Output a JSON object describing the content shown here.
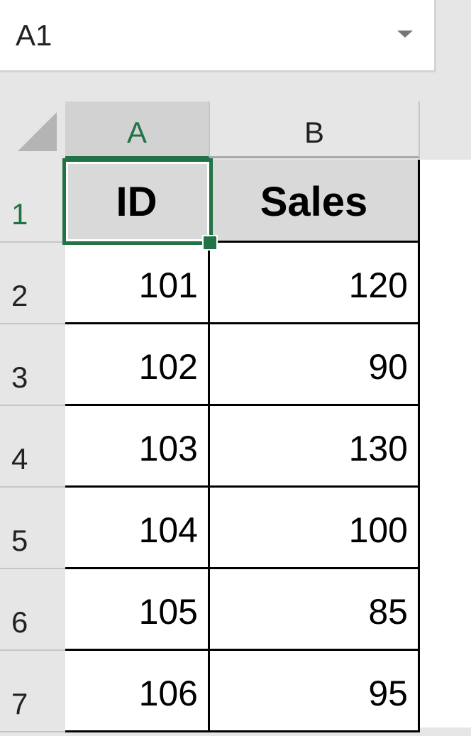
{
  "name_box": {
    "value": "A1",
    "dropdown_icon": "chevron-down-icon"
  },
  "columns": [
    "A",
    "B"
  ],
  "selected_cell": "A1",
  "accent_color": "#217346",
  "rows": [
    {
      "num": "1",
      "cells": [
        "ID",
        "Sales"
      ]
    },
    {
      "num": "2",
      "cells": [
        "101",
        "120"
      ]
    },
    {
      "num": "3",
      "cells": [
        "102",
        "90"
      ]
    },
    {
      "num": "4",
      "cells": [
        "103",
        "130"
      ]
    },
    {
      "num": "5",
      "cells": [
        "104",
        "100"
      ]
    },
    {
      "num": "6",
      "cells": [
        "105",
        "85"
      ]
    },
    {
      "num": "7",
      "cells": [
        "106",
        "95"
      ]
    }
  ]
}
